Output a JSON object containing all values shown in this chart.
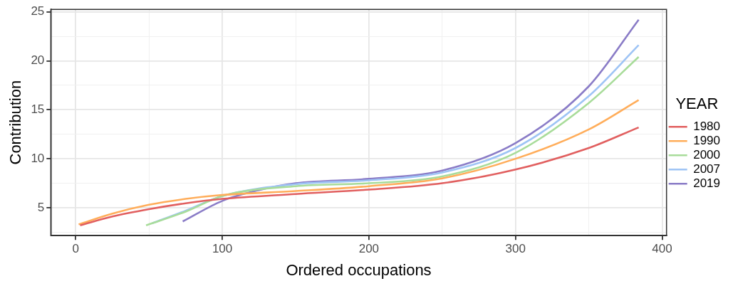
{
  "chart_data": {
    "type": "line",
    "xlabel": "Ordered occupations",
    "ylabel": "Contribution",
    "legend_title": "YEAR",
    "legend": "right",
    "grid": true,
    "marker": "none",
    "line_style": "solid",
    "xlim": [
      -17,
      403
    ],
    "ylim": [
      2.15,
      25.25
    ],
    "xticks": [
      0,
      {
        "value": 50,
        "label": null
      },
      100,
      {
        "value": 150,
        "label": null
      },
      200,
      {
        "value": 250,
        "label": null
      },
      300,
      {
        "value": 350,
        "label": null
      },
      400
    ],
    "yticks": [
      {
        "value": 2.5,
        "label": null
      },
      5,
      {
        "value": 7.5,
        "label": null
      },
      10,
      {
        "value": 12.5,
        "label": null
      },
      15,
      {
        "value": 17.5,
        "label": null
      },
      20,
      {
        "value": 22.5,
        "label": null
      },
      25
    ],
    "series": [
      {
        "name": "1980",
        "color": "#e15f5f",
        "x": [
          3,
          25,
          50,
          75,
          100,
          150,
          200,
          250,
          300,
          350,
          384
        ],
        "values": [
          3.2,
          4.1,
          4.85,
          5.45,
          5.9,
          6.4,
          6.85,
          7.5,
          8.9,
          11.1,
          13.2
        ]
      },
      {
        "name": "1990",
        "color": "#ffad5a",
        "x": [
          2,
          25,
          50,
          75,
          100,
          150,
          200,
          250,
          300,
          350,
          384
        ],
        "values": [
          3.3,
          4.4,
          5.3,
          5.9,
          6.3,
          6.7,
          7.2,
          8.0,
          10.0,
          13.0,
          16.0
        ]
      },
      {
        "name": "2000",
        "color": "#a8dc9a",
        "x": [
          48,
          75,
          100,
          150,
          200,
          250,
          300,
          350,
          384
        ],
        "values": [
          3.2,
          4.6,
          6.2,
          7.2,
          7.5,
          8.2,
          10.6,
          15.7,
          20.4
        ]
      },
      {
        "name": "2007",
        "color": "#9ec4f5",
        "x": [
          52,
          75,
          100,
          150,
          200,
          250,
          300,
          350,
          384
        ],
        "values": [
          3.4,
          4.7,
          6.2,
          7.4,
          7.8,
          8.6,
          11.1,
          16.4,
          21.6
        ]
      },
      {
        "name": "2019",
        "color": "#8a7cc7",
        "x": [
          73,
          100,
          125,
          150,
          200,
          250,
          300,
          350,
          384
        ],
        "values": [
          3.6,
          5.7,
          6.8,
          7.5,
          7.95,
          8.8,
          11.6,
          17.4,
          24.2
        ]
      }
    ]
  }
}
